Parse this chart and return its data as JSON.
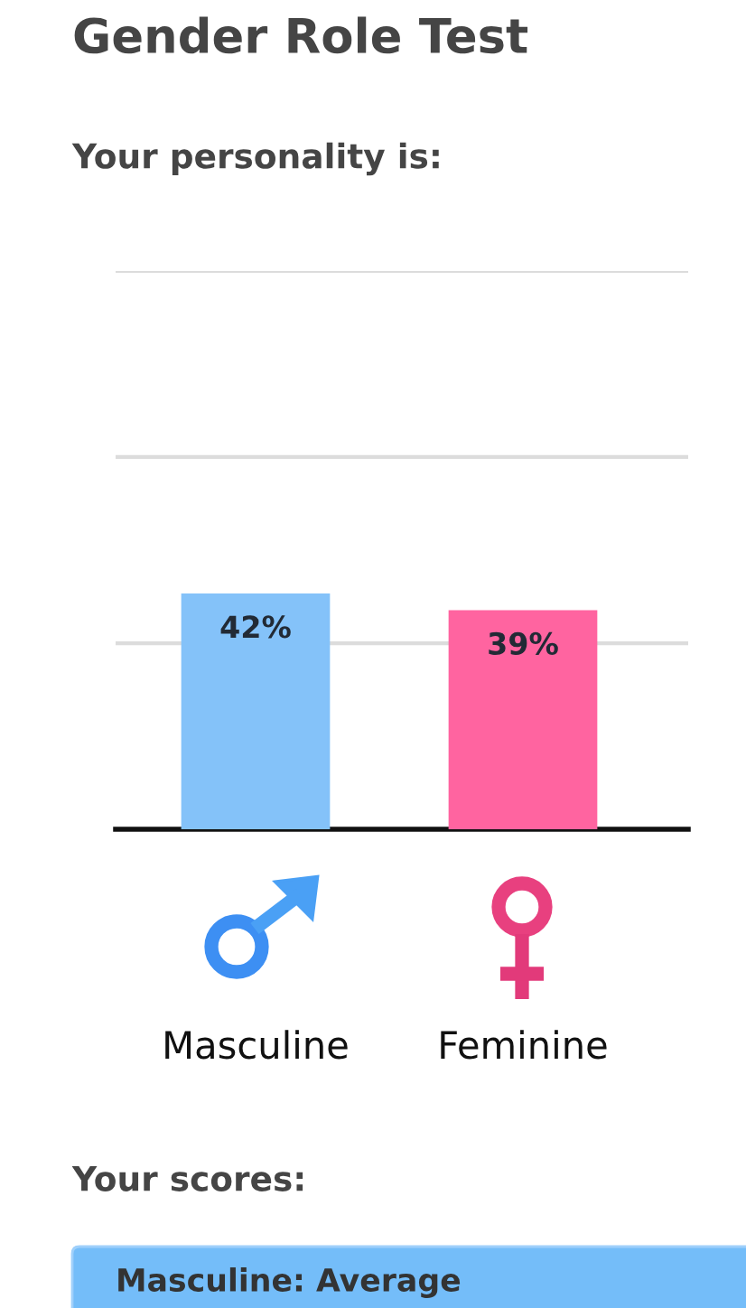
{
  "chart_data": {
    "type": "bar",
    "title": "Gender Role Test",
    "subtitle": "Your personality is:",
    "categories": [
      "Masculine",
      "Feminine"
    ],
    "values": [
      42,
      39
    ],
    "colors": [
      "#84c2f9",
      "#ff64a0"
    ],
    "value_labels": [
      "42%",
      "39%"
    ],
    "ylim": [
      0,
      100
    ],
    "yticks": [
      {
        "value": 33.3,
        "label": null
      },
      {
        "value": 66.7,
        "label": null
      },
      {
        "value": 100,
        "label": null
      }
    ],
    "grid": "y",
    "tick_labels": "x",
    "annotations": [
      "Your scores:",
      "Masculine: Average"
    ]
  }
}
